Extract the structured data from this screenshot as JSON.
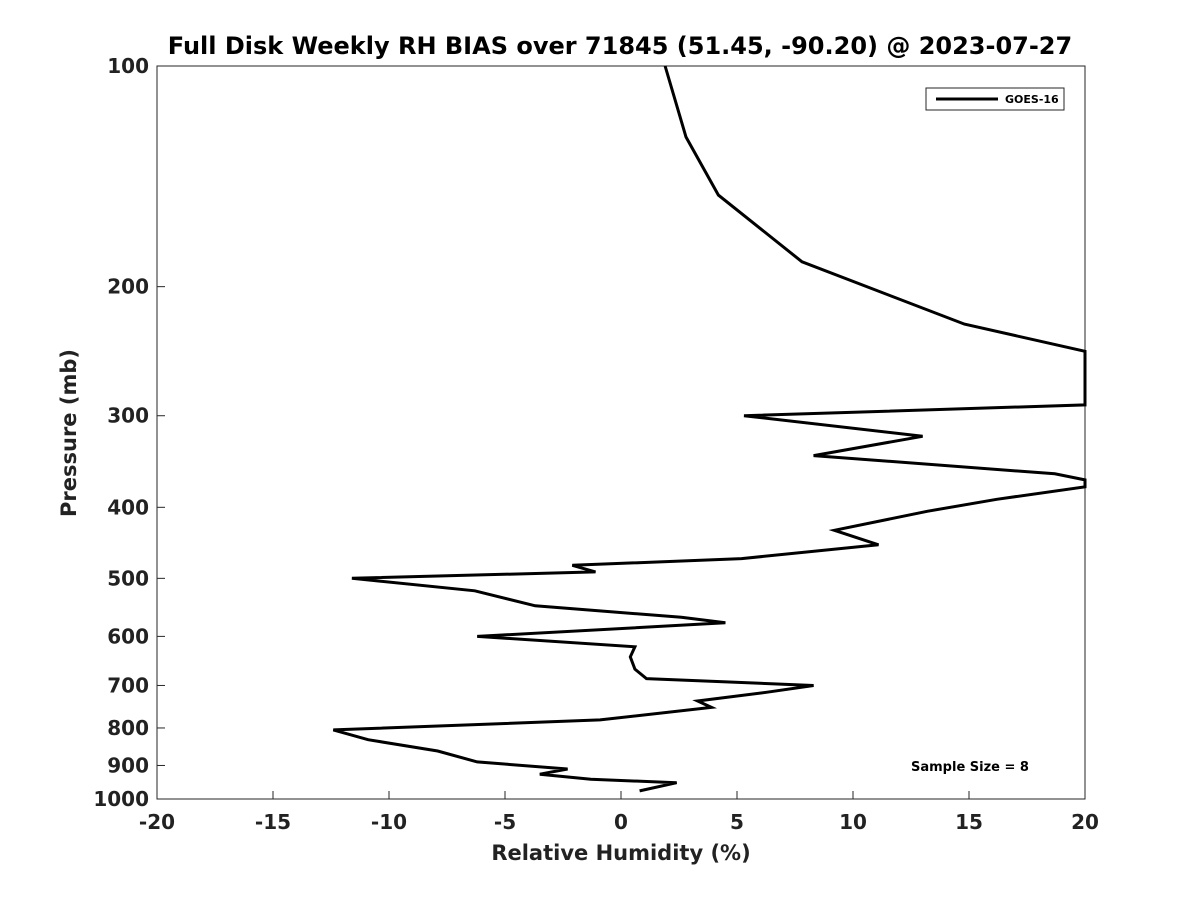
{
  "chart_data": {
    "type": "line",
    "title": "Full Disk Weekly RH BIAS over 71845 (51.45, -90.20) @ 2023-07-27",
    "xlabel": "Relative Humidity (%)",
    "ylabel": "Pressure (mb)",
    "xlim": [
      -20,
      20
    ],
    "ylim": [
      1000,
      100
    ],
    "y_scale": "log",
    "x_ticks": [
      -20,
      -15,
      -10,
      -5,
      0,
      5,
      10,
      15,
      20
    ],
    "x_tick_labels": [
      "-20",
      "-15",
      "-10",
      "-5",
      "0",
      "5",
      "10",
      "15",
      "20"
    ],
    "y_ticks": [
      100,
      200,
      300,
      400,
      500,
      600,
      700,
      800,
      900,
      1000
    ],
    "y_tick_labels": [
      "100",
      "200",
      "300",
      "400",
      "500",
      "600",
      "700",
      "800",
      "900",
      "1000"
    ],
    "grid": false,
    "legend_position": "top-right",
    "annotation": "Sample Size = 8",
    "series": [
      {
        "name": "GOES-16",
        "color": "#000000",
        "points": [
          [
            1.9,
            100
          ],
          [
            2.8,
            125
          ],
          [
            4.2,
            150
          ],
          [
            7.8,
            185
          ],
          [
            14.8,
            225
          ],
          [
            20.0,
            245
          ],
          [
            20.0,
            290
          ],
          [
            5.3,
            300
          ],
          [
            13.0,
            320
          ],
          [
            8.3,
            340
          ],
          [
            18.7,
            360
          ],
          [
            20.0,
            367
          ],
          [
            20.0,
            375
          ],
          [
            16.2,
            390
          ],
          [
            13.2,
            405
          ],
          [
            9.2,
            430
          ],
          [
            11.1,
            450
          ],
          [
            5.2,
            470
          ],
          [
            -2.1,
            480
          ],
          [
            -1.1,
            490
          ],
          [
            -11.6,
            500
          ],
          [
            -6.3,
            520
          ],
          [
            -3.7,
            545
          ],
          [
            2.6,
            565
          ],
          [
            4.5,
            575
          ],
          [
            -6.2,
            600
          ],
          [
            0.6,
            620
          ],
          [
            0.4,
            640
          ],
          [
            0.6,
            665
          ],
          [
            1.1,
            685
          ],
          [
            8.3,
            700
          ],
          [
            6.3,
            715
          ],
          [
            3.3,
            735
          ],
          [
            3.9,
            750
          ],
          [
            -0.9,
            780
          ],
          [
            -12.4,
            805
          ],
          [
            -10.9,
            830
          ],
          [
            -7.9,
            860
          ],
          [
            -6.2,
            890
          ],
          [
            -2.3,
            910
          ],
          [
            -3.5,
            925
          ],
          [
            -1.3,
            940
          ],
          [
            2.4,
            950
          ],
          [
            0.8,
            975
          ]
        ]
      }
    ]
  }
}
